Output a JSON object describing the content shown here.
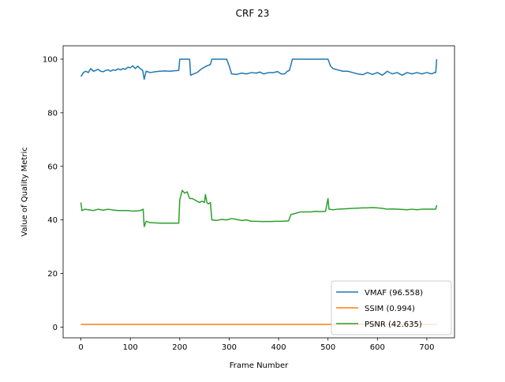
{
  "chart_data": {
    "type": "line",
    "title": "CRF 23",
    "xlabel": "Frame Number",
    "ylabel": "Value of Quality Metric",
    "xlim": [
      -36,
      756
    ],
    "ylim": [
      -4,
      105
    ],
    "xticks": [
      0,
      100,
      200,
      300,
      400,
      500,
      600,
      700
    ],
    "yticks": [
      0,
      20,
      40,
      60,
      80,
      100
    ],
    "grid": false,
    "legend_position": "lower right",
    "series": [
      {
        "name": "VMAF (96.558)",
        "color": "#1f77b4",
        "points": [
          [
            0,
            93.5
          ],
          [
            5,
            95
          ],
          [
            10,
            95.5
          ],
          [
            15,
            95
          ],
          [
            20,
            96.5
          ],
          [
            25,
            95.5
          ],
          [
            30,
            95.8
          ],
          [
            35,
            96.2
          ],
          [
            40,
            95.5
          ],
          [
            45,
            95.3
          ],
          [
            50,
            95.8
          ],
          [
            55,
            96
          ],
          [
            60,
            95.5
          ],
          [
            65,
            96
          ],
          [
            70,
            95.8
          ],
          [
            75,
            96.4
          ],
          [
            80,
            96
          ],
          [
            85,
            96.5
          ],
          [
            90,
            96.2
          ],
          [
            95,
            97
          ],
          [
            100,
            96.8
          ],
          [
            105,
            97.5
          ],
          [
            110,
            96.5
          ],
          [
            115,
            97.4
          ],
          [
            120,
            96.5
          ],
          [
            125,
            95.8
          ],
          [
            128,
            92.5
          ],
          [
            132,
            95.5
          ],
          [
            140,
            95
          ],
          [
            150,
            95.3
          ],
          [
            160,
            95.5
          ],
          [
            170,
            95.6
          ],
          [
            180,
            95.5
          ],
          [
            190,
            95.7
          ],
          [
            198,
            95.8
          ],
          [
            200,
            100
          ],
          [
            215,
            100
          ],
          [
            220,
            100
          ],
          [
            222,
            94
          ],
          [
            228,
            94.5
          ],
          [
            235,
            95
          ],
          [
            245,
            96.5
          ],
          [
            255,
            97.5
          ],
          [
            262,
            98
          ],
          [
            265,
            100
          ],
          [
            295,
            100
          ],
          [
            300,
            97.5
          ],
          [
            305,
            94.5
          ],
          [
            315,
            94.3
          ],
          [
            325,
            94.8
          ],
          [
            335,
            94.5
          ],
          [
            345,
            95
          ],
          [
            355,
            94.8
          ],
          [
            362,
            95.2
          ],
          [
            370,
            94.5
          ],
          [
            380,
            95
          ],
          [
            390,
            95
          ],
          [
            398,
            95.4
          ],
          [
            405,
            94.5
          ],
          [
            412,
            94.5
          ],
          [
            418,
            95.5
          ],
          [
            422,
            95.8
          ],
          [
            428,
            100
          ],
          [
            450,
            100
          ],
          [
            480,
            100
          ],
          [
            500,
            100
          ],
          [
            505,
            97.5
          ],
          [
            510,
            96.5
          ],
          [
            520,
            96
          ],
          [
            530,
            95.5
          ],
          [
            540,
            95.5
          ],
          [
            550,
            95
          ],
          [
            560,
            94.5
          ],
          [
            570,
            94.2
          ],
          [
            580,
            95
          ],
          [
            590,
            94.3
          ],
          [
            600,
            95
          ],
          [
            610,
            94
          ],
          [
            620,
            95.5
          ],
          [
            630,
            94.5
          ],
          [
            640,
            95
          ],
          [
            650,
            94
          ],
          [
            660,
            95
          ],
          [
            670,
            94.5
          ],
          [
            680,
            95
          ],
          [
            690,
            94.5
          ],
          [
            700,
            95
          ],
          [
            710,
            94.5
          ],
          [
            715,
            95
          ],
          [
            718,
            95
          ],
          [
            720,
            100
          ]
        ]
      },
      {
        "name": "SSIM (0.994)",
        "color": "#ff7f0e",
        "points": [
          [
            0,
            1
          ],
          [
            100,
            1
          ],
          [
            200,
            1
          ],
          [
            300,
            1
          ],
          [
            400,
            1
          ],
          [
            500,
            1
          ],
          [
            600,
            1
          ],
          [
            700,
            1
          ],
          [
            720,
            1
          ]
        ]
      },
      {
        "name": "PSNR (42.635)",
        "color": "#2ca02c",
        "points": [
          [
            0,
            46.5
          ],
          [
            2,
            43.5
          ],
          [
            8,
            44
          ],
          [
            15,
            43.8
          ],
          [
            25,
            43.5
          ],
          [
            35,
            44
          ],
          [
            45,
            43.6
          ],
          [
            55,
            44
          ],
          [
            65,
            43.7
          ],
          [
            75,
            43.5
          ],
          [
            85,
            43.5
          ],
          [
            95,
            43.5
          ],
          [
            105,
            43.3
          ],
          [
            115,
            43.4
          ],
          [
            122,
            43.6
          ],
          [
            126,
            44
          ],
          [
            128,
            37.5
          ],
          [
            132,
            39.5
          ],
          [
            140,
            39
          ],
          [
            150,
            38.9
          ],
          [
            160,
            38.8
          ],
          [
            170,
            38.8
          ],
          [
            180,
            38.8
          ],
          [
            190,
            38.8
          ],
          [
            198,
            38.8
          ],
          [
            200,
            47.5
          ],
          [
            205,
            51
          ],
          [
            210,
            50
          ],
          [
            215,
            50.5
          ],
          [
            220,
            48
          ],
          [
            225,
            48
          ],
          [
            230,
            47.5
          ],
          [
            235,
            47
          ],
          [
            240,
            46.5
          ],
          [
            245,
            47
          ],
          [
            250,
            46.5
          ],
          [
            252,
            49.5
          ],
          [
            255,
            46.5
          ],
          [
            258,
            46
          ],
          [
            262,
            46.5
          ],
          [
            265,
            40
          ],
          [
            275,
            39.8
          ],
          [
            285,
            40.2
          ],
          [
            295,
            40
          ],
          [
            305,
            40.5
          ],
          [
            315,
            40.2
          ],
          [
            325,
            39.8
          ],
          [
            335,
            40
          ],
          [
            345,
            39.5
          ],
          [
            355,
            39.5
          ],
          [
            365,
            39.4
          ],
          [
            375,
            39.4
          ],
          [
            385,
            39.4
          ],
          [
            395,
            39.5
          ],
          [
            402,
            39.5
          ],
          [
            408,
            39.5
          ],
          [
            415,
            39.6
          ],
          [
            420,
            39.6
          ],
          [
            425,
            42
          ],
          [
            435,
            42.5
          ],
          [
            445,
            43
          ],
          [
            455,
            43
          ],
          [
            465,
            43
          ],
          [
            475,
            43.2
          ],
          [
            485,
            43.1
          ],
          [
            495,
            43.2
          ],
          [
            500,
            48
          ],
          [
            502,
            44
          ],
          [
            510,
            43.8
          ],
          [
            520,
            44
          ],
          [
            530,
            44.1
          ],
          [
            540,
            44.2
          ],
          [
            550,
            44.3
          ],
          [
            560,
            44.4
          ],
          [
            570,
            44.5
          ],
          [
            580,
            44.5
          ],
          [
            590,
            44.6
          ],
          [
            600,
            44.5
          ],
          [
            610,
            44.3
          ],
          [
            620,
            44
          ],
          [
            630,
            44.1
          ],
          [
            640,
            44
          ],
          [
            650,
            43.9
          ],
          [
            660,
            43.8
          ],
          [
            670,
            44
          ],
          [
            680,
            43.8
          ],
          [
            690,
            44
          ],
          [
            700,
            44
          ],
          [
            710,
            44
          ],
          [
            715,
            44
          ],
          [
            718,
            44
          ],
          [
            720,
            45.5
          ]
        ]
      }
    ]
  }
}
